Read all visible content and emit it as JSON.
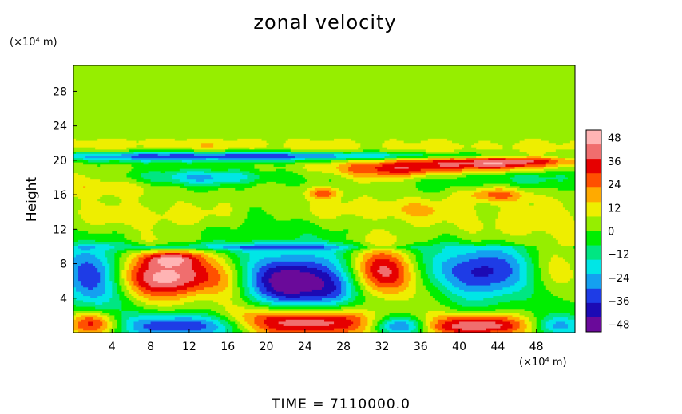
{
  "chart_data": {
    "type": "heatmap",
    "title": "zonal velocity",
    "ylabel": "Height",
    "y_unit": "(×10⁴ m)",
    "x_unit": "(×10⁴ m)",
    "xlim": [
      0,
      52
    ],
    "ylim": [
      0,
      31
    ],
    "x_ticks": [
      4,
      8,
      12,
      16,
      20,
      24,
      28,
      32,
      36,
      40,
      44,
      48
    ],
    "y_ticks": [
      4,
      8,
      12,
      16,
      20,
      24,
      28
    ],
    "colorbar": {
      "min": -52,
      "max": 52,
      "ticks": [
        48,
        36,
        24,
        12,
        0,
        -12,
        -24,
        -36,
        -48
      ],
      "tick_labels": [
        "48",
        "36",
        "24",
        "12",
        "0",
        "−12",
        "−24",
        "−36",
        "−48"
      ],
      "colors": [
        "#6a0a9a",
        "#1c0ab4",
        "#1e3ce6",
        "#14a0f0",
        "#00e6e6",
        "#00e682",
        "#00ee00",
        "#96ee00",
        "#eeee00",
        "#ffaa00",
        "#ff5000",
        "#e60000",
        "#f06e6e",
        "#ffb4b4"
      ]
    },
    "features": [
      {
        "x": 26,
        "y": 20.5,
        "sx": 26,
        "sy": 0.35,
        "v": -26
      },
      {
        "x": 12,
        "y": 20.3,
        "sx": 12,
        "sy": 0.5,
        "v": -18
      },
      {
        "x": 46,
        "y": 20.1,
        "sx": 8,
        "sy": 0.5,
        "v": 22
      },
      {
        "x": 40,
        "y": 21.5,
        "sx": 16,
        "sy": 0.6,
        "v": 6
      },
      {
        "x": 10,
        "y": 21.8,
        "sx": 10,
        "sy": 0.6,
        "v": 7
      },
      {
        "x": 34,
        "y": 19,
        "sx": 5,
        "sy": 0.8,
        "v": 34
      },
      {
        "x": 44,
        "y": 19.5,
        "sx": 4,
        "sy": 0.6,
        "v": 30
      },
      {
        "x": 13,
        "y": 18,
        "sx": 6,
        "sy": 0.7,
        "v": -26
      },
      {
        "x": 3,
        "y": 17.2,
        "sx": 3,
        "sy": 0.9,
        "v": 15
      },
      {
        "x": 44,
        "y": 18,
        "sx": 8,
        "sy": 1.0,
        "v": -14
      },
      {
        "x": 26,
        "y": 16.2,
        "sx": 1.2,
        "sy": 0.5,
        "v": 24
      },
      {
        "x": 44,
        "y": 16,
        "sx": 2.5,
        "sy": 0.6,
        "v": 22
      },
      {
        "x": 33,
        "y": 14.3,
        "sx": 5,
        "sy": 0.8,
        "v": 12
      },
      {
        "x": 8,
        "y": 13.5,
        "sx": 5,
        "sy": 1.0,
        "v": 9
      },
      {
        "x": 20,
        "y": 11.5,
        "sx": 6,
        "sy": 1.5,
        "v": -8
      },
      {
        "x": 46,
        "y": 12.5,
        "sx": 6,
        "sy": 1.5,
        "v": 8
      },
      {
        "x": 18,
        "y": 10,
        "sx": 12,
        "sy": 0.35,
        "v": -20
      },
      {
        "x": 2,
        "y": 6.5,
        "sx": 2.5,
        "sy": 2.5,
        "v": -36
      },
      {
        "x": 10,
        "y": 6.5,
        "sx": 4,
        "sy": 1.8,
        "v": 52
      },
      {
        "x": 10,
        "y": 8.6,
        "sx": 2,
        "sy": 0.6,
        "v": 28
      },
      {
        "x": 23,
        "y": 6,
        "sx": 4,
        "sy": 2.2,
        "v": -52
      },
      {
        "x": 32,
        "y": 7,
        "sx": 2.5,
        "sy": 2.0,
        "v": 44
      },
      {
        "x": 42,
        "y": 7,
        "sx": 4,
        "sy": 2.2,
        "v": -40
      },
      {
        "x": 49.5,
        "y": 7,
        "sx": 2,
        "sy": 2.0,
        "v": 16
      },
      {
        "x": 16,
        "y": 5,
        "sx": 1.5,
        "sy": 2.0,
        "v": 10
      },
      {
        "x": 27,
        "y": 4.5,
        "sx": 1.5,
        "sy": 1.5,
        "v": -14
      },
      {
        "x": 38,
        "y": 5,
        "sx": 2,
        "sy": 2.0,
        "v": 10
      },
      {
        "x": 2,
        "y": 1.0,
        "sx": 2,
        "sy": 1.0,
        "v": 38
      },
      {
        "x": 12,
        "y": 0.8,
        "sx": 5,
        "sy": 1.0,
        "v": -44
      },
      {
        "x": 23,
        "y": 1.2,
        "sx": 6,
        "sy": 1.2,
        "v": 52
      },
      {
        "x": 34,
        "y": 0.8,
        "sx": 2,
        "sy": 0.8,
        "v": -40
      },
      {
        "x": 42,
        "y": 0.8,
        "sx": 4,
        "sy": 0.9,
        "v": 48
      },
      {
        "x": 50,
        "y": 0.8,
        "sx": 2,
        "sy": 0.8,
        "v": -26
      }
    ]
  },
  "footer": {
    "time_label": "TIME  =  7110000.0"
  }
}
